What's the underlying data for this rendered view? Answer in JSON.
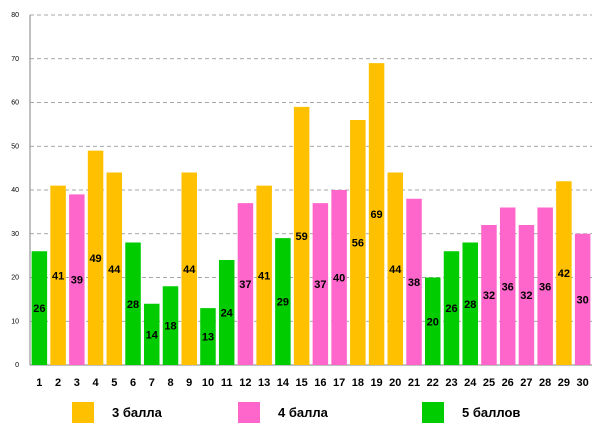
{
  "chart_data": {
    "type": "bar",
    "title": "",
    "xlabel": "",
    "ylabel": "",
    "ylim": [
      0,
      80
    ],
    "yticks": [
      0,
      10,
      20,
      30,
      40,
      50,
      60,
      70,
      80
    ],
    "grid": true,
    "categories": [
      "1",
      "2",
      "3",
      "4",
      "5",
      "6",
      "7",
      "8",
      "9",
      "10",
      "11",
      "12",
      "13",
      "14",
      "15",
      "16",
      "17",
      "18",
      "19",
      "20",
      "21",
      "22",
      "23",
      "24",
      "25",
      "26",
      "27",
      "28",
      "29",
      "30"
    ],
    "values": [
      26,
      41,
      39,
      49,
      44,
      28,
      14,
      18,
      44,
      13,
      24,
      37,
      41,
      29,
      59,
      37,
      40,
      56,
      69,
      44,
      38,
      20,
      26,
      28,
      32,
      36,
      32,
      36,
      42,
      30
    ],
    "value_labels": [
      "26",
      "41",
      "39",
      "49",
      "44",
      "28",
      "14",
      "18",
      "44",
      "13",
      "24",
      "37",
      "41",
      "29",
      "59",
      "37",
      "40",
      "56",
      "69",
      "44",
      "38",
      "20",
      "26",
      "28",
      "32",
      "36",
      "32",
      "36",
      "42",
      "30"
    ],
    "groups": [
      "g5",
      "g3",
      "g4",
      "g3",
      "g3",
      "g5",
      "g5",
      "g5",
      "g3",
      "g5",
      "g5",
      "g4",
      "g3",
      "g5",
      "g3",
      "g4",
      "g4",
      "g3",
      "g3",
      "g3",
      "g4",
      "g5",
      "g5",
      "g5",
      "g4",
      "g4",
      "g4",
      "g4",
      "g3",
      "g4"
    ],
    "legend": [
      {
        "key": "g3",
        "label": "3 балла",
        "color": "#FFC000"
      },
      {
        "key": "g4",
        "label": "4 балла",
        "color": "#FF66CC"
      },
      {
        "key": "g5",
        "label": "5 баллов",
        "color": "#00CC00"
      }
    ],
    "legend_position": "bottom"
  }
}
